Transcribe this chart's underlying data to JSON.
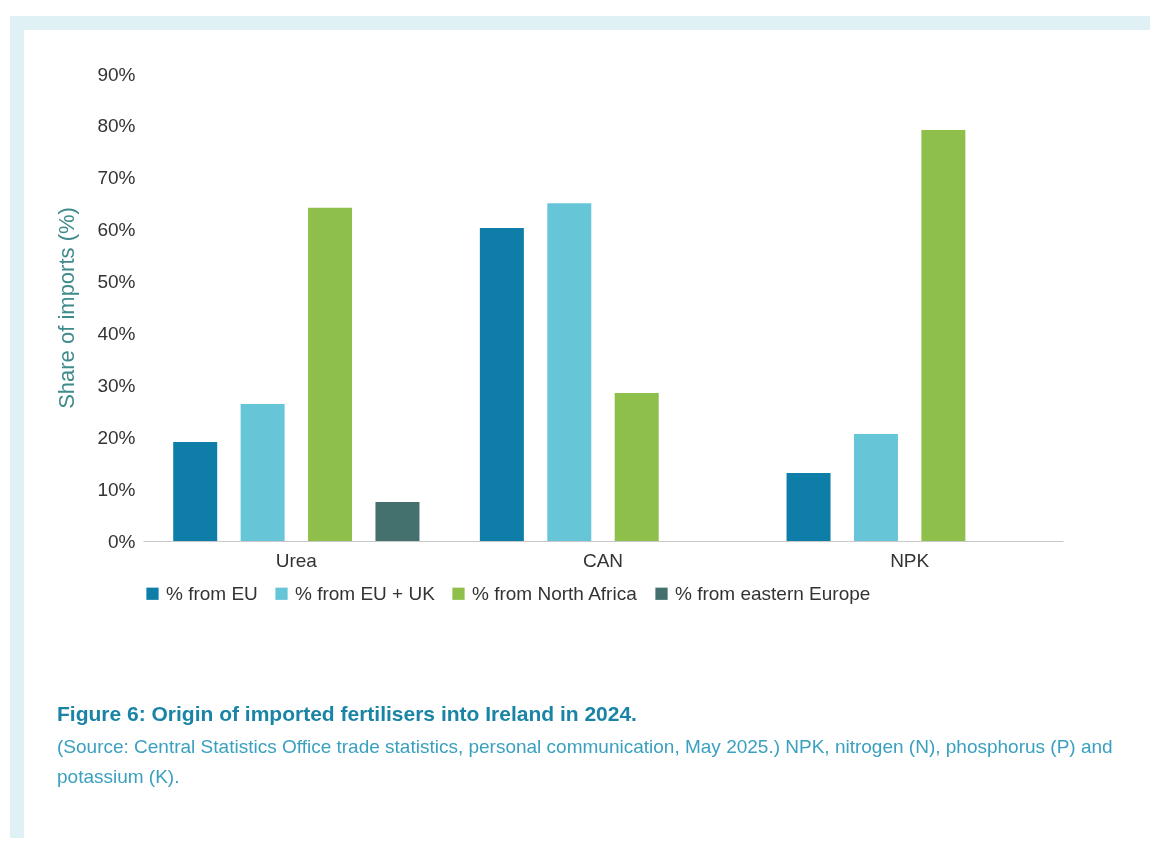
{
  "chart_data": {
    "type": "bar",
    "title": "Figure 6: Origin of imported fertilisers into Ireland in 2024.",
    "ylabel": "Share of imports (%)",
    "categories": [
      "Urea",
      "CAN",
      "NPK"
    ],
    "series": [
      {
        "name": "% from EU",
        "color": "#0e7ea8",
        "values": [
          19.1,
          60.3,
          13.1
        ]
      },
      {
        "name": "% from EU + UK",
        "color": "#67c5d8",
        "values": [
          26.4,
          65.1,
          20.6
        ]
      },
      {
        "name": "% from North Africa",
        "color": "#8fbf4b",
        "values": [
          64.2,
          28.5,
          79.2
        ]
      },
      {
        "name": "% from eastern Europe",
        "color": "#44706e",
        "values": [
          7.5,
          null,
          null
        ]
      }
    ],
    "ylim": [
      0,
      90
    ],
    "yticks": [
      {
        "value": 0,
        "label": "0%"
      },
      {
        "value": 10,
        "label": "10%"
      },
      {
        "value": 20,
        "label": "20%"
      },
      {
        "value": 30,
        "label": "30%"
      },
      {
        "value": 40,
        "label": "40%"
      },
      {
        "value": 50,
        "label": "50%"
      },
      {
        "value": 60,
        "label": "60%"
      },
      {
        "value": 70,
        "label": "70%"
      },
      {
        "value": 80,
        "label": "80%"
      },
      {
        "value": 90,
        "label": "90%"
      }
    ],
    "grid": false,
    "legend": "bottom",
    "annotations": [
      "(Source: Central Statistics Office trade statistics, personal communication, May 2025.) NPK, nitrogen (N), phosphorus (P) and potassium (K)."
    ]
  }
}
